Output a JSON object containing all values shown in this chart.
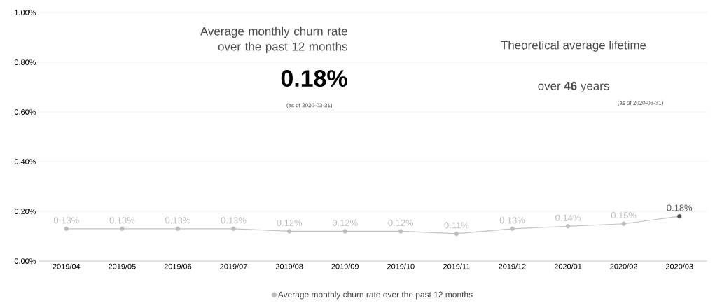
{
  "chart_data": {
    "type": "line",
    "categories": [
      "2019/04",
      "2019/05",
      "2019/06",
      "2019/07",
      "2019/08",
      "2019/09",
      "2019/10",
      "2019/11",
      "2019/12",
      "2020/01",
      "2020/02",
      "2020/03"
    ],
    "series": [
      {
        "name": "Average monthly churn rate over the past 12 months",
        "color": "#c4c4c4",
        "colors": [
          "#bdbdbd",
          "#bdbdbd",
          "#bdbdbd",
          "#bdbdbd",
          "#bdbdbd",
          "#bdbdbd",
          "#bdbdbd",
          "#bdbdbd",
          "#bdbdbd",
          "#bdbdbd",
          "#bdbdbd",
          "#555555"
        ],
        "values": [
          0.13,
          0.13,
          0.13,
          0.13,
          0.12,
          0.12,
          0.12,
          0.11,
          0.13,
          0.14,
          0.15,
          0.18
        ],
        "value_labels": [
          "0.13%",
          "0.13%",
          "0.13%",
          "0.13%",
          "0.12%",
          "0.12%",
          "0.12%",
          "0.11%",
          "0.13%",
          "0.14%",
          "0.15%",
          "0.18%"
        ]
      }
    ],
    "ylim": [
      0,
      1
    ],
    "yticks": [
      {
        "value": 0,
        "label": "0.00%"
      },
      {
        "value": 0.2,
        "label": "0.20%"
      },
      {
        "value": 0.4,
        "label": "0.40%"
      },
      {
        "value": 0.6,
        "label": "0.60%"
      },
      {
        "value": 0.8,
        "label": "0.80%"
      },
      {
        "value": 1,
        "label": "1.00%"
      }
    ],
    "grid": "y",
    "marker": "circle",
    "legend": "bottom",
    "annotations": [
      "Average monthly churn rate over the past 12 months",
      "**0.18**%",
      "(as of 2020-03-31)",
      "Theoretical average lifetime",
      "over **46** years",
      "(as of 2020-03-31)"
    ]
  }
}
